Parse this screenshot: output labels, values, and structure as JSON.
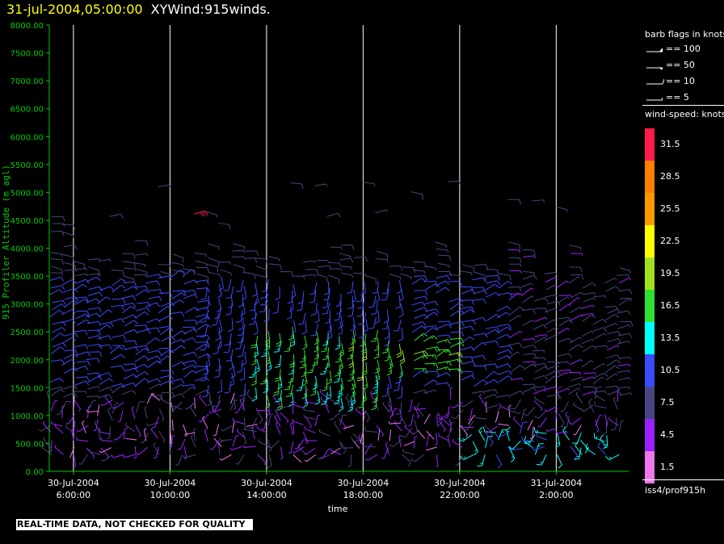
{
  "title": {
    "datetime": "31-jul-2004,05:00:00",
    "name": "XYWind:915winds."
  },
  "notice": "REAL-TIME DATA, NOT CHECKED FOR QUALITY",
  "colors": {
    "axis": "#00cc00",
    "time_lines": "#ffffff",
    "title": "#ffff00"
  },
  "chart_data": {
    "type": "scatter",
    "title": "31-jul-2004,05:00:00 XYWind:915winds.",
    "xlabel": "time",
    "ylabel": "915 Profiler Altitude (m agl)",
    "ylim": [
      0,
      8000
    ],
    "yticks": [
      "0.00",
      "500.00",
      "1000.00",
      "1500.00",
      "2000.00",
      "2500.00",
      "3000.00",
      "3500.00",
      "4000.00",
      "4500.00",
      "5000.00",
      "5500.00",
      "6000.00",
      "6500.00",
      "7000.00",
      "7500.00",
      "8000.00"
    ],
    "xticks": [
      {
        "date": "30-Jul-2004",
        "time": "6:00:00"
      },
      {
        "date": "30-Jul-2004",
        "time": "10:00:00"
      },
      {
        "date": "30-Jul-2004",
        "time": "14:00:00"
      },
      {
        "date": "30-Jul-2004",
        "time": "18:00:00"
      },
      {
        "date": "30-Jul-2004",
        "time": "22:00:00"
      },
      {
        "date": "31-Jul-2004",
        "time": "2:00:00"
      }
    ],
    "xlim_hours": [
      5.0,
      29.0
    ],
    "grid": "vertical lines at time ticks",
    "legend": "right",
    "barb_legend": {
      "title": "barb flags in knots",
      "entries": [
        "== 100",
        "== 50",
        "== 10",
        "== 5"
      ]
    },
    "colorbar": {
      "title": "wind-speed: knots",
      "labels": [
        "31.5",
        "28.5",
        "25.5",
        "22.5",
        "19.5",
        "16.5",
        "13.5",
        "10.5",
        "7.5",
        "4.5",
        "1.5"
      ],
      "colors": [
        "#ff1a4a",
        "#ff8000",
        "#ff9900",
        "#ffff00",
        "#a0e020",
        "#30e030",
        "#00ffff",
        "#3a4cff",
        "#464680",
        "#9a20ff",
        "#ee77ee"
      ]
    },
    "source": "iss4/prof915h",
    "description_of_field": "wind barbs every ~1 hour from 5 to 28 h, altitudes 300–5300 m"
  }
}
